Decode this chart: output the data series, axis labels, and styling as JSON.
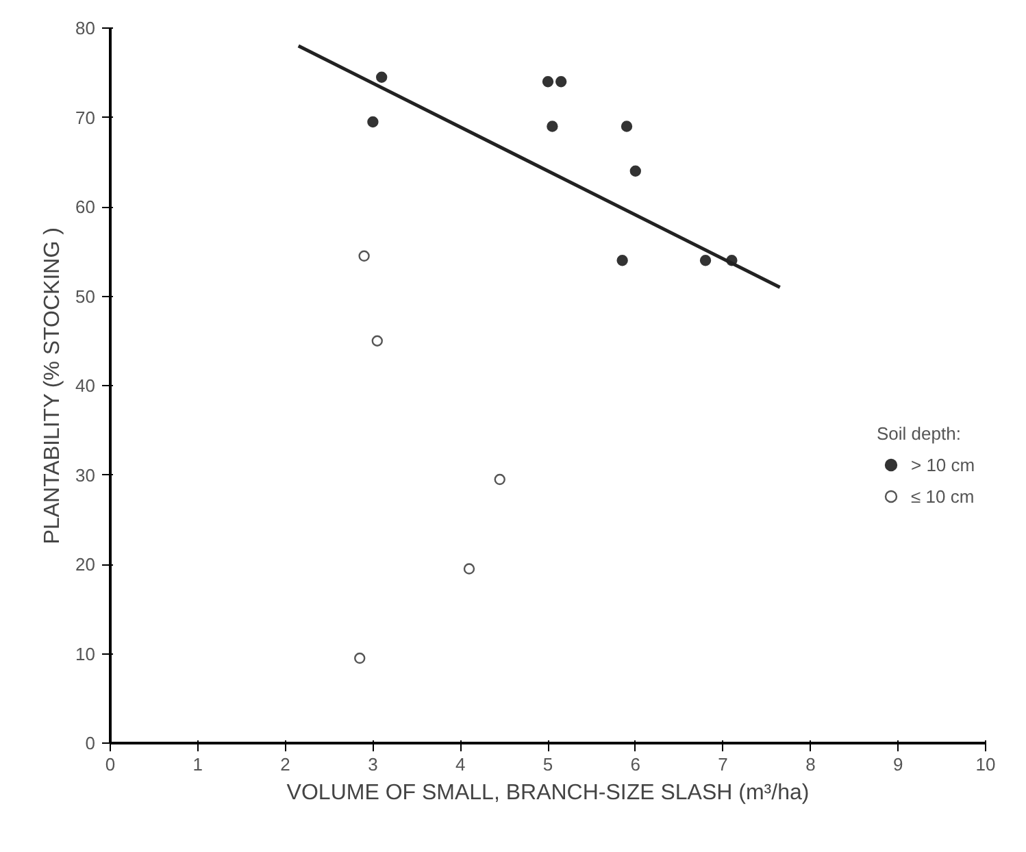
{
  "chart_data": {
    "type": "scatter",
    "xlabel": "VOLUME OF SMALL, BRANCH-SIZE SLASH (m³/ha)",
    "ylabel": "PLANTABILITY (% STOCKING )",
    "legend_title": "Soil depth:",
    "xlim": [
      0,
      10
    ],
    "ylim": [
      0,
      80
    ],
    "xticks": [
      0,
      1,
      2,
      3,
      4,
      5,
      6,
      7,
      8,
      9,
      10
    ],
    "yticks": [
      0,
      10,
      20,
      30,
      40,
      50,
      60,
      70,
      80
    ],
    "grid": false,
    "legend": "right",
    "marker": "circle",
    "series": [
      {
        "name": "> 10 cm",
        "color": "#333333",
        "x": [
          3.1,
          3.0,
          5.0,
          5.15,
          5.05,
          5.9,
          6.0,
          5.85,
          6.8,
          7.1
        ],
        "values": [
          74.5,
          69.5,
          74,
          74,
          69,
          69,
          64,
          54,
          54,
          54
        ]
      },
      {
        "name": "≤ 10 cm",
        "color": "#555555",
        "x": [
          2.9,
          3.05,
          4.45,
          4.1,
          2.85
        ],
        "values": [
          54.5,
          45,
          29.5,
          19.5,
          9.5
        ]
      },
      {
        "type": "line",
        "color": "#222222",
        "marker": "none",
        "x": [
          2.15,
          7.65
        ],
        "values": [
          78,
          51
        ]
      }
    ]
  }
}
